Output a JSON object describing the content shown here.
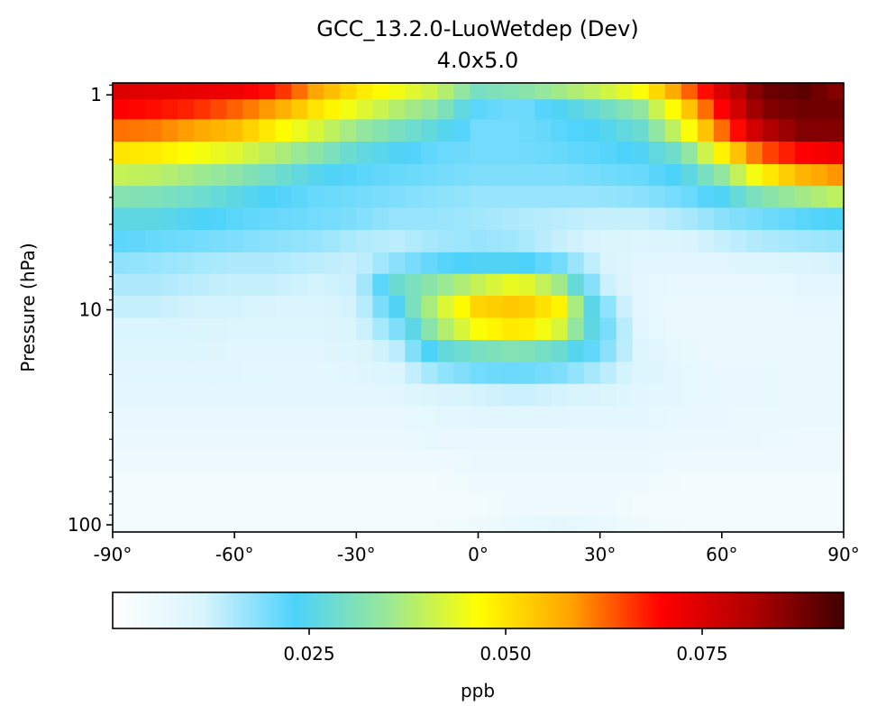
{
  "chart_data": {
    "type": "heatmap",
    "title": "GCC_13.2.0-LuoWetdep (Dev)",
    "subtitle": "4.0x5.0",
    "xlabel": "",
    "ylabel": "Pressure (hPa)",
    "x_axis": {
      "range": [
        -90,
        90
      ],
      "ticks": [
        -90,
        -60,
        -30,
        0,
        30,
        60,
        90
      ],
      "tick_labels": [
        "-90°",
        "-60°",
        "-30°",
        "0°",
        "30°",
        "60°",
        "90°"
      ]
    },
    "y_axis": {
      "scale": "log",
      "inverted": true,
      "range": [
        108,
        0.88
      ],
      "ticks": [
        1,
        10,
        100
      ],
      "tick_labels": [
        "1",
        "10",
        "100"
      ]
    },
    "colorbar": {
      "label": "ppb",
      "range": [
        0,
        0.093
      ],
      "ticks": [
        0.025,
        0.05,
        0.075
      ],
      "tick_labels": [
        "0.025",
        "0.050",
        "0.075"
      ],
      "colormap": [
        "#ffffff",
        "#d8f4fd",
        "#4cd2fb",
        "#98e897",
        "#ffff00",
        "#ffa500",
        "#ff0000",
        "#b00000",
        "#400000"
      ]
    },
    "grid": false,
    "legend": "colorbar-bottom",
    "latitudes": [
      -90,
      -86,
      -82,
      -78,
      -74,
      -70,
      -66,
      -62,
      -58,
      -54,
      -50,
      -46,
      -42,
      -38,
      -34,
      -30,
      -26,
      -22,
      -18,
      -14,
      -10,
      -6,
      -2,
      2,
      6,
      10,
      14,
      18,
      22,
      26,
      30,
      34,
      38,
      42,
      46,
      50,
      54,
      58,
      62,
      66,
      70,
      74,
      78,
      82,
      86,
      90
    ],
    "levels_hPa": [
      0.88,
      1.05,
      1.3,
      1.65,
      2.1,
      2.65,
      3.35,
      4.25,
      5.4,
      6.8,
      8.6,
      10.9,
      13.8,
      17.5,
      22.1,
      28,
      35.5,
      45,
      57,
      72,
      91,
      108
    ],
    "anchor_values": {
      "lat": [
        -90,
        -80,
        -70,
        -60,
        -50,
        -40,
        -30,
        -20,
        -10,
        0,
        10,
        20,
        30,
        40,
        50,
        60,
        70,
        80,
        90
      ],
      "rows": [
        [
          0.075,
          0.074,
          0.073,
          0.072,
          0.068,
          0.058,
          0.05,
          0.045,
          0.04,
          0.03,
          0.032,
          0.036,
          0.04,
          0.046,
          0.06,
          0.075,
          0.088,
          0.09,
          0.085
        ],
        [
          0.07,
          0.069,
          0.067,
          0.063,
          0.058,
          0.05,
          0.044,
          0.038,
          0.033,
          0.022,
          0.02,
          0.024,
          0.028,
          0.034,
          0.05,
          0.07,
          0.086,
          0.088,
          0.088
        ],
        [
          0.062,
          0.061,
          0.058,
          0.055,
          0.048,
          0.042,
          0.035,
          0.03,
          0.026,
          0.02,
          0.02,
          0.022,
          0.024,
          0.028,
          0.042,
          0.062,
          0.08,
          0.086,
          0.086
        ],
        [
          0.05,
          0.049,
          0.046,
          0.043,
          0.038,
          0.033,
          0.027,
          0.024,
          0.021,
          0.02,
          0.02,
          0.021,
          0.022,
          0.024,
          0.03,
          0.048,
          0.064,
          0.07,
          0.072
        ],
        [
          0.04,
          0.039,
          0.036,
          0.033,
          0.029,
          0.025,
          0.022,
          0.021,
          0.02,
          0.019,
          0.019,
          0.019,
          0.02,
          0.021,
          0.024,
          0.034,
          0.048,
          0.056,
          0.06
        ],
        [
          0.032,
          0.031,
          0.029,
          0.026,
          0.023,
          0.021,
          0.02,
          0.019,
          0.018,
          0.017,
          0.017,
          0.017,
          0.017,
          0.018,
          0.02,
          0.024,
          0.032,
          0.036,
          0.04
        ],
        [
          0.026,
          0.026,
          0.024,
          0.022,
          0.021,
          0.02,
          0.019,
          0.017,
          0.017,
          0.016,
          0.015,
          0.014,
          0.013,
          0.013,
          0.015,
          0.018,
          0.02,
          0.022,
          0.024
        ],
        [
          0.022,
          0.021,
          0.02,
          0.019,
          0.018,
          0.017,
          0.015,
          0.014,
          0.016,
          0.017,
          0.016,
          0.013,
          0.011,
          0.01,
          0.011,
          0.013,
          0.015,
          0.016,
          0.017
        ],
        [
          0.018,
          0.017,
          0.016,
          0.015,
          0.015,
          0.014,
          0.013,
          0.018,
          0.022,
          0.024,
          0.024,
          0.02,
          0.012,
          0.009,
          0.009,
          0.009,
          0.01,
          0.011,
          0.012
        ],
        [
          0.015,
          0.015,
          0.014,
          0.013,
          0.013,
          0.012,
          0.013,
          0.028,
          0.034,
          0.04,
          0.045,
          0.036,
          0.014,
          0.008,
          0.007,
          0.007,
          0.007,
          0.008,
          0.008
        ],
        [
          0.013,
          0.013,
          0.012,
          0.012,
          0.011,
          0.011,
          0.012,
          0.024,
          0.04,
          0.052,
          0.054,
          0.048,
          0.02,
          0.008,
          0.006,
          0.006,
          0.006,
          0.007,
          0.007
        ],
        [
          0.011,
          0.011,
          0.011,
          0.01,
          0.01,
          0.01,
          0.011,
          0.019,
          0.036,
          0.046,
          0.05,
          0.042,
          0.022,
          0.009,
          0.006,
          0.006,
          0.006,
          0.006,
          0.006
        ],
        [
          0.01,
          0.01,
          0.01,
          0.009,
          0.009,
          0.009,
          0.01,
          0.014,
          0.026,
          0.03,
          0.032,
          0.028,
          0.02,
          0.01,
          0.007,
          0.006,
          0.006,
          0.006,
          0.006
        ],
        [
          0.009,
          0.009,
          0.009,
          0.009,
          0.008,
          0.008,
          0.009,
          0.011,
          0.017,
          0.02,
          0.021,
          0.019,
          0.015,
          0.01,
          0.008,
          0.007,
          0.007,
          0.006,
          0.006
        ],
        [
          0.008,
          0.008,
          0.008,
          0.008,
          0.008,
          0.008,
          0.008,
          0.009,
          0.011,
          0.012,
          0.013,
          0.012,
          0.011,
          0.009,
          0.008,
          0.007,
          0.007,
          0.006,
          0.006
        ],
        [
          0.007,
          0.007,
          0.007,
          0.007,
          0.007,
          0.007,
          0.007,
          0.007,
          0.008,
          0.009,
          0.009,
          0.009,
          0.008,
          0.008,
          0.007,
          0.007,
          0.006,
          0.006,
          0.006
        ],
        [
          0.006,
          0.006,
          0.006,
          0.006,
          0.006,
          0.006,
          0.006,
          0.006,
          0.007,
          0.007,
          0.007,
          0.007,
          0.007,
          0.007,
          0.006,
          0.006,
          0.006,
          0.005,
          0.005
        ],
        [
          0.005,
          0.005,
          0.005,
          0.005,
          0.005,
          0.005,
          0.005,
          0.005,
          0.005,
          0.006,
          0.006,
          0.006,
          0.006,
          0.006,
          0.005,
          0.005,
          0.005,
          0.005,
          0.005
        ],
        [
          0.004,
          0.004,
          0.004,
          0.004,
          0.004,
          0.004,
          0.004,
          0.004,
          0.004,
          0.005,
          0.005,
          0.005,
          0.005,
          0.005,
          0.004,
          0.004,
          0.004,
          0.004,
          0.004
        ],
        [
          0.004,
          0.004,
          0.004,
          0.004,
          0.004,
          0.004,
          0.004,
          0.004,
          0.004,
          0.004,
          0.005,
          0.005,
          0.005,
          0.004,
          0.004,
          0.004,
          0.004,
          0.004,
          0.004
        ],
        [
          0.004,
          0.004,
          0.004,
          0.004,
          0.004,
          0.004,
          0.004,
          0.004,
          0.004,
          0.005,
          0.007,
          0.008,
          0.007,
          0.005,
          0.004,
          0.004,
          0.004,
          0.004,
          0.004
        ]
      ]
    }
  }
}
